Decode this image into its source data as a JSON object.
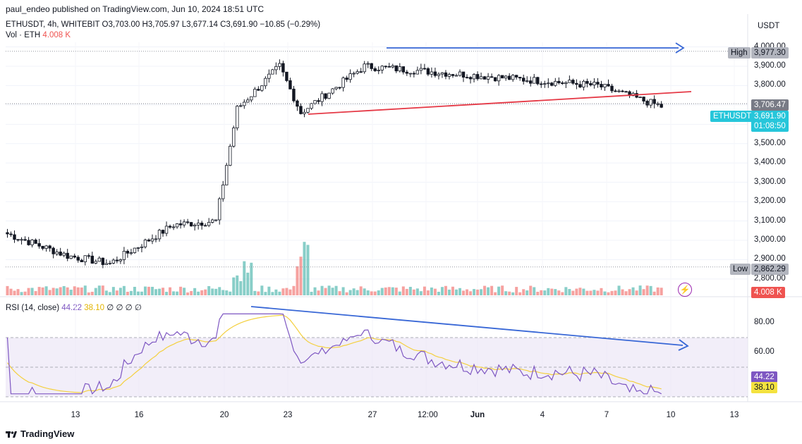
{
  "header": {
    "publisher_line": "paul_endeo published on TradingView.com, Jun 10, 2024 18:51 UTC",
    "symbol_line": "ETHUSDT, 4h, WHITEBIT",
    "ohlc": {
      "o": "O3,703.00",
      "h": "H3,705.97",
      "l": "L3,677.14",
      "c": "C3,691.90",
      "chg": "−10.85 (−0.29%)"
    },
    "vol_label": "Vol · ETH",
    "vol_value": "4.008 K",
    "rsi_label": "RSI (14, close)",
    "rsi_value": "44.22",
    "rsi_ma_value": "38.10",
    "rsi_extra": "∅ ∅ ∅ ∅"
  },
  "price_axis": {
    "currency": "USDT",
    "ticks": [
      "4,000.00",
      "3,900.00",
      "3,800.00",
      "3,700.00",
      "3,600.00",
      "3,500.00",
      "3,400.00",
      "3,300.00",
      "3,200.00",
      "3,100.00",
      "3,000.00",
      "2,900.00",
      "2,800.00"
    ],
    "high_label": "High",
    "high_value": "3,977.30",
    "low_label": "Low",
    "low_value": "2,862.29",
    "last_close_value": "3,706.47",
    "current_symbol": "ETHUSDT",
    "current_price": "3,691.90",
    "countdown": "01:08:50",
    "volume_badge": "4.008 K"
  },
  "rsi_axis": {
    "ticks": [
      "80.00",
      "60.00"
    ],
    "rsi_badge": "44.22",
    "ma_badge": "38.10"
  },
  "time_axis": {
    "ticks": [
      "13",
      "16",
      "20",
      "23",
      "27",
      "12:00",
      "Jun",
      "4",
      "7",
      "10",
      "13"
    ]
  },
  "footer": {
    "brand": "TradingView"
  },
  "colors": {
    "up": "#26a69a",
    "down": "#ef5350",
    "trend_red": "#e53946",
    "arrow_blue": "#3867d6",
    "rsi": "#7e57c2",
    "rsi_ma": "#f4d03f",
    "rsi_band": "#ede7f6"
  },
  "chart_data": [
    {
      "type": "candlestick",
      "title": "ETHUSDT, 4h, WHITEBIT",
      "y_unit": "USDT",
      "ylim": [
        2780,
        4020
      ],
      "x_range": [
        "May 10",
        "Jun 13"
      ],
      "grid": true,
      "high": 3977.3,
      "low": 2862.29,
      "last_close": 3706.47,
      "current": 3691.9,
      "segments": [
        {
          "from": "May 10",
          "to": "May 13",
          "approx_close": [
            3040,
            2920
          ]
        },
        {
          "from": "May 13",
          "to": "May 15",
          "approx_close": [
            2920,
            2880
          ]
        },
        {
          "from": "May 15",
          "to": "May 18",
          "approx_close": [
            2880,
            3080
          ]
        },
        {
          "from": "May 18",
          "to": "May 20",
          "approx_close": [
            3080,
            3100
          ]
        },
        {
          "from": "May 20",
          "to": "May 21",
          "approx_close": [
            3100,
            3680
          ]
        },
        {
          "from": "May 21",
          "to": "May 23",
          "approx_close": [
            3680,
            3900
          ]
        },
        {
          "from": "May 23",
          "to": "May 24",
          "approx_close": [
            3900,
            3660
          ]
        },
        {
          "from": "May 24",
          "to": "May 27",
          "approx_close": [
            3660,
            3900
          ]
        },
        {
          "from": "May 27",
          "to": "Jun 7",
          "approx_close": [
            3900,
            3800
          ]
        },
        {
          "from": "Jun 7",
          "to": "Jun 10",
          "approx_close": [
            3800,
            3692
          ]
        }
      ]
    },
    {
      "type": "bar",
      "series_name": "Vol · ETH",
      "last_value_k": 4.008
    },
    {
      "type": "line",
      "series": [
        {
          "name": "RSI (14, close)",
          "last": 44.22
        },
        {
          "name": "RSI MA",
          "last": 38.1
        }
      ],
      "ylim": [
        20,
        90
      ],
      "bands": [
        30,
        50,
        70
      ]
    }
  ]
}
